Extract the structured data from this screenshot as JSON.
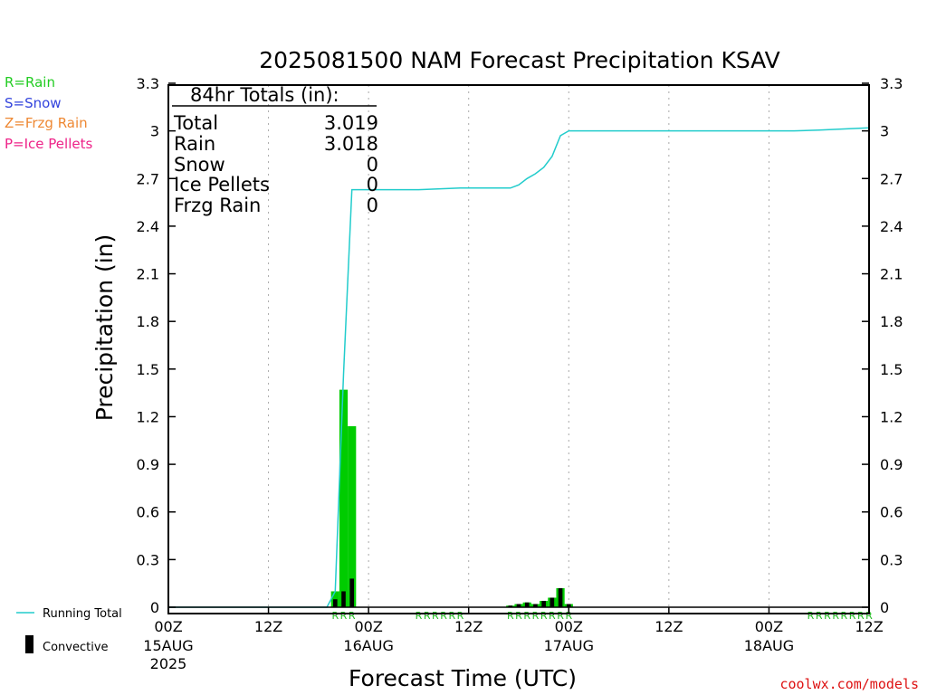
{
  "title": "2025081500 NAM Forecast Precipitation KSAV",
  "ylabel": "Precipitation (in)",
  "xlabel": "Forecast Time (UTC)",
  "footer": "coolwx.com/models",
  "legend_types": [
    {
      "label": "R=Rain",
      "color": "#22cc22"
    },
    {
      "label": "S=Snow",
      "color": "#3344dd"
    },
    {
      "label": "Z=Frzg Rain",
      "color": "#ee8833"
    },
    {
      "label": "P=Ice Pellets",
      "color": "#ee2288"
    }
  ],
  "bottom_legend": {
    "running_total": "Running Total",
    "convective": "Convective"
  },
  "totals_box": {
    "heading": "84hr Totals (in):",
    "rows": [
      {
        "label": "Total",
        "value": "3.019"
      },
      {
        "label": "Rain",
        "value": "3.018"
      },
      {
        "label": "Snow",
        "value": "0"
      },
      {
        "label": "Ice Pellets",
        "value": "0"
      },
      {
        "label": "Frzg Rain",
        "value": "0"
      }
    ]
  },
  "colors": {
    "running_total": "#22cccc",
    "rain_bar": "#00cc00",
    "convective": "#000000",
    "grid": "#aaaaaa",
    "rain_marker": "#22bb22"
  },
  "chart_data": {
    "type": "bar",
    "x_unit": "forecast hour",
    "xlim": [
      0,
      84
    ],
    "ylim": [
      0,
      3.3
    ],
    "y_ticks": [
      0,
      0.3,
      0.6,
      0.9,
      1.2,
      1.5,
      1.8,
      2.1,
      2.4,
      2.7,
      3,
      3.3
    ],
    "x_ticks": [
      {
        "x": 0,
        "label": "00Z",
        "sub": "15AUG",
        "sub2": "2025"
      },
      {
        "x": 12,
        "label": "12Z"
      },
      {
        "x": 24,
        "label": "00Z",
        "sub": "16AUG"
      },
      {
        "x": 36,
        "label": "12Z"
      },
      {
        "x": 48,
        "label": "00Z",
        "sub": "17AUG"
      },
      {
        "x": 60,
        "label": "12Z"
      },
      {
        "x": 72,
        "label": "00Z",
        "sub": "18AUG"
      },
      {
        "x": 84,
        "label": "12Z"
      }
    ],
    "grid": true,
    "series": [
      {
        "name": "Rain",
        "kind": "bar",
        "bar_width_hours": 1,
        "points": [
          {
            "x": 20,
            "y": 0.1
          },
          {
            "x": 21,
            "y": 1.37
          },
          {
            "x": 22,
            "y": 1.14
          },
          {
            "x": 41,
            "y": 0.01
          },
          {
            "x": 42,
            "y": 0.02
          },
          {
            "x": 43,
            "y": 0.03
          },
          {
            "x": 44,
            "y": 0.02
          },
          {
            "x": 45,
            "y": 0.04
          },
          {
            "x": 46,
            "y": 0.06
          },
          {
            "x": 47,
            "y": 0.12
          },
          {
            "x": 48,
            "y": 0.02
          }
        ]
      },
      {
        "name": "Convective",
        "kind": "bar",
        "bar_width_hours": 0.5,
        "points": [
          {
            "x": 20,
            "y": 0.05
          },
          {
            "x": 21,
            "y": 0.1
          },
          {
            "x": 22,
            "y": 0.18
          },
          {
            "x": 41,
            "y": 0.01
          },
          {
            "x": 42,
            "y": 0.02
          },
          {
            "x": 43,
            "y": 0.03
          },
          {
            "x": 44,
            "y": 0.02
          },
          {
            "x": 45,
            "y": 0.04
          },
          {
            "x": 46,
            "y": 0.06
          },
          {
            "x": 47,
            "y": 0.12
          },
          {
            "x": 48,
            "y": 0.02
          }
        ]
      },
      {
        "name": "Running Total",
        "kind": "line",
        "points": [
          {
            "x": 0,
            "y": 0
          },
          {
            "x": 19,
            "y": 0
          },
          {
            "x": 20,
            "y": 0.1
          },
          {
            "x": 21,
            "y": 1.47
          },
          {
            "x": 22,
            "y": 2.63
          },
          {
            "x": 30,
            "y": 2.63
          },
          {
            "x": 35,
            "y": 2.64
          },
          {
            "x": 41,
            "y": 2.64
          },
          {
            "x": 42,
            "y": 2.66
          },
          {
            "x": 43,
            "y": 2.7
          },
          {
            "x": 44,
            "y": 2.73
          },
          {
            "x": 45,
            "y": 2.77
          },
          {
            "x": 46,
            "y": 2.84
          },
          {
            "x": 47,
            "y": 2.97
          },
          {
            "x": 48,
            "y": 3.0
          },
          {
            "x": 75,
            "y": 3.0
          },
          {
            "x": 78,
            "y": 3.005
          },
          {
            "x": 84,
            "y": 3.019
          }
        ]
      }
    ],
    "type_markers": [
      {
        "x": 20,
        "text": "R"
      },
      {
        "x": 21,
        "text": "R"
      },
      {
        "x": 22,
        "text": "R"
      },
      {
        "x": 30,
        "text": "R"
      },
      {
        "x": 31,
        "text": "R"
      },
      {
        "x": 32,
        "text": "R"
      },
      {
        "x": 33,
        "text": "R"
      },
      {
        "x": 34,
        "text": "R"
      },
      {
        "x": 35,
        "text": "R"
      },
      {
        "x": 41,
        "text": "R"
      },
      {
        "x": 42,
        "text": "R"
      },
      {
        "x": 43,
        "text": "R"
      },
      {
        "x": 44,
        "text": "R"
      },
      {
        "x": 45,
        "text": "R"
      },
      {
        "x": 46,
        "text": "R"
      },
      {
        "x": 47,
        "text": "R"
      },
      {
        "x": 48,
        "text": "R"
      },
      {
        "x": 77,
        "text": "R"
      },
      {
        "x": 78,
        "text": "R"
      },
      {
        "x": 79,
        "text": "R"
      },
      {
        "x": 80,
        "text": "R"
      },
      {
        "x": 81,
        "text": "R"
      },
      {
        "x": 82,
        "text": "R"
      },
      {
        "x": 83,
        "text": "R"
      },
      {
        "x": 84,
        "text": "R"
      }
    ]
  }
}
